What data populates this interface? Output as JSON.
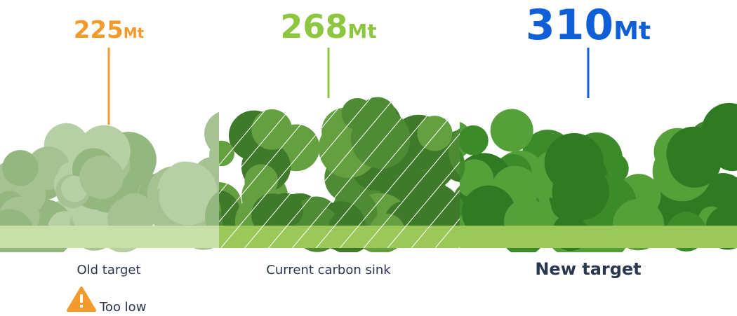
{
  "items": [
    {
      "value": 225,
      "unit": "Mt",
      "label": "Old target",
      "note": "Too low"
    },
    {
      "value": 268,
      "unit": "Mt",
      "label": "Current carbon sink"
    },
    {
      "value": 310,
      "unit": "Mt",
      "label": "New target"
    }
  ]
}
